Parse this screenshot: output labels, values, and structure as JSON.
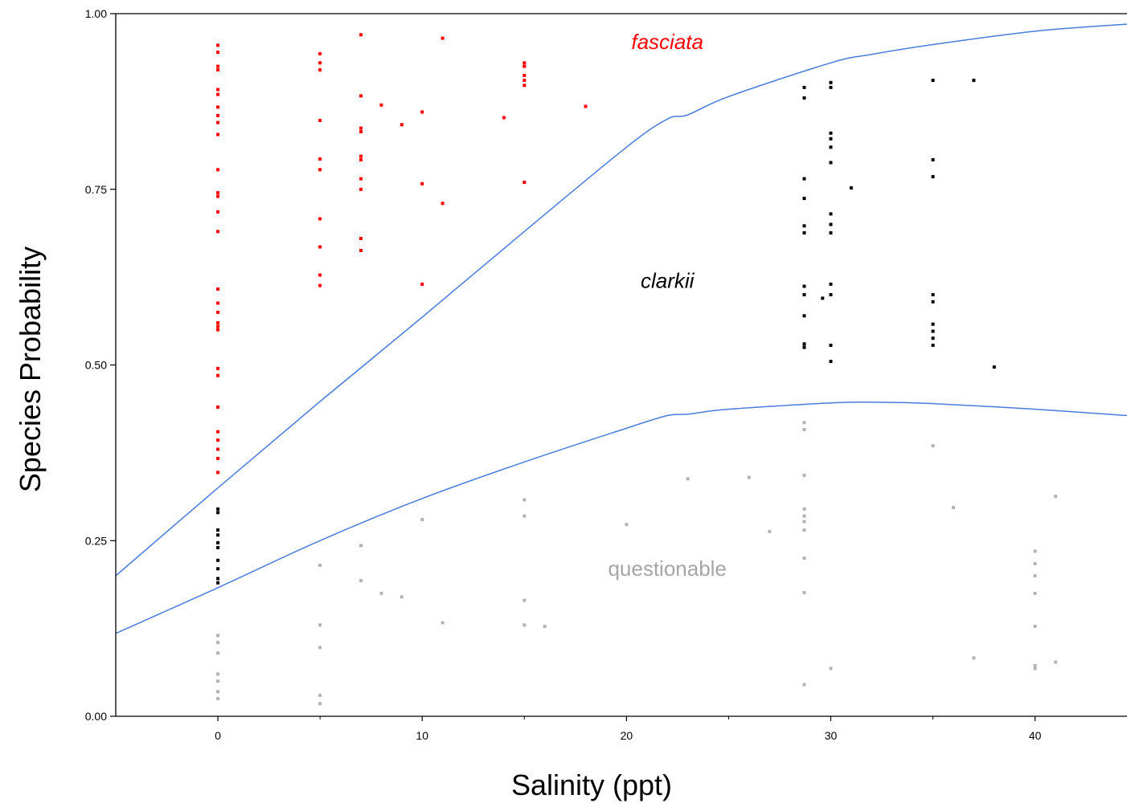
{
  "chart_data": {
    "type": "scatter",
    "title": "",
    "xlabel": "Salinity (ppt)",
    "ylabel": "Species Probability",
    "xlim": [
      -5,
      44.5
    ],
    "ylim": [
      0,
      1
    ],
    "x_ticks": [
      0,
      10,
      20,
      30,
      40
    ],
    "x_minor_ticks": [
      5,
      15,
      25,
      35
    ],
    "x_tick_labels": [
      "0",
      "10",
      "20",
      "30",
      "40"
    ],
    "y_ticks": [
      0,
      0.25,
      0.5,
      0.75,
      1.0
    ],
    "y_tick_labels": [
      "0.00",
      "0.25",
      "0.50",
      "0.75",
      "1.00"
    ],
    "grid": false,
    "legend": "none",
    "annotations": [
      {
        "text": "fasciata",
        "x": 22,
        "y": 0.95,
        "color": "#ff0000",
        "style": "italic"
      },
      {
        "text": "clarkii",
        "x": 22,
        "y": 0.61,
        "color": "#000000",
        "style": "italic"
      },
      {
        "text": "questionable",
        "x": 22,
        "y": 0.2,
        "color": "#a6a6a6",
        "style": "normal"
      }
    ],
    "curves": [
      {
        "color": "#4a7bdc",
        "x": [
          -5,
          0,
          5,
          10,
          15,
          20,
          22,
          23,
          25,
          30,
          32,
          35,
          40,
          44.5
        ],
        "y": [
          0.2,
          0.325,
          0.448,
          0.568,
          0.69,
          0.81,
          0.85,
          0.856,
          0.882,
          0.93,
          0.942,
          0.956,
          0.975,
          0.985
        ]
      },
      {
        "color": "#4a7bdc",
        "x": [
          -5,
          0,
          5,
          10,
          15,
          20,
          22,
          23,
          25,
          30,
          32,
          35,
          40,
          44.5
        ],
        "y": [
          0.118,
          0.183,
          0.25,
          0.31,
          0.362,
          0.41,
          0.428,
          0.43,
          0.437,
          0.446,
          0.447,
          0.445,
          0.437,
          0.428
        ]
      }
    ],
    "series": [
      {
        "color": "#ff0000",
        "points": [
          [
            0,
            0.955
          ],
          [
            0,
            0.945
          ],
          [
            0,
            0.925
          ],
          [
            0,
            0.92
          ],
          [
            0,
            0.892
          ],
          [
            0,
            0.885
          ],
          [
            0,
            0.867
          ],
          [
            0,
            0.855
          ],
          [
            0,
            0.845
          ],
          [
            0,
            0.828
          ],
          [
            0,
            0.778
          ],
          [
            0,
            0.745
          ],
          [
            0,
            0.74
          ],
          [
            0,
            0.718
          ],
          [
            0,
            0.69
          ],
          [
            0,
            0.608
          ],
          [
            0,
            0.588
          ],
          [
            0,
            0.575
          ],
          [
            0,
            0.56
          ],
          [
            0,
            0.555
          ],
          [
            0,
            0.55
          ],
          [
            0,
            0.495
          ],
          [
            0,
            0.485
          ],
          [
            0,
            0.44
          ],
          [
            0,
            0.405
          ],
          [
            0,
            0.393
          ],
          [
            0,
            0.38
          ],
          [
            0,
            0.367
          ],
          [
            0,
            0.347
          ],
          [
            5,
            0.943
          ],
          [
            5,
            0.93
          ],
          [
            5,
            0.92
          ],
          [
            5,
            0.848
          ],
          [
            5,
            0.793
          ],
          [
            5,
            0.778
          ],
          [
            5,
            0.708
          ],
          [
            5,
            0.668
          ],
          [
            5,
            0.628
          ],
          [
            5,
            0.613
          ],
          [
            7,
            0.97
          ],
          [
            7,
            0.883
          ],
          [
            7,
            0.837
          ],
          [
            7,
            0.832
          ],
          [
            7,
            0.797
          ],
          [
            7,
            0.792
          ],
          [
            7,
            0.765
          ],
          [
            7,
            0.75
          ],
          [
            7,
            0.68
          ],
          [
            7,
            0.663
          ],
          [
            8,
            0.87
          ],
          [
            9,
            0.842
          ],
          [
            10,
            0.86
          ],
          [
            10,
            0.758
          ],
          [
            10,
            0.615
          ],
          [
            11,
            0.965
          ],
          [
            11,
            0.73
          ],
          [
            14,
            0.852
          ],
          [
            15,
            0.93
          ],
          [
            15,
            0.925
          ],
          [
            15,
            0.912
          ],
          [
            15,
            0.905
          ],
          [
            15,
            0.898
          ],
          [
            15,
            0.76
          ],
          [
            18,
            0.868
          ]
        ]
      },
      {
        "color": "#000000",
        "points": [
          [
            0,
            0.295
          ],
          [
            0,
            0.29
          ],
          [
            0,
            0.265
          ],
          [
            0,
            0.258
          ],
          [
            0,
            0.247
          ],
          [
            0,
            0.24
          ],
          [
            0,
            0.222
          ],
          [
            0,
            0.21
          ],
          [
            0,
            0.196
          ],
          [
            0,
            0.19
          ],
          [
            28.7,
            0.895
          ],
          [
            28.7,
            0.88
          ],
          [
            28.7,
            0.765
          ],
          [
            28.7,
            0.737
          ],
          [
            28.7,
            0.698
          ],
          [
            28.7,
            0.688
          ],
          [
            28.7,
            0.612
          ],
          [
            28.7,
            0.6
          ],
          [
            28.7,
            0.57
          ],
          [
            28.7,
            0.53
          ],
          [
            28.7,
            0.525
          ],
          [
            29.6,
            0.595
          ],
          [
            30,
            0.902
          ],
          [
            30,
            0.895
          ],
          [
            30,
            0.83
          ],
          [
            30,
            0.822
          ],
          [
            30,
            0.81
          ],
          [
            30,
            0.788
          ],
          [
            30,
            0.715
          ],
          [
            30,
            0.7
          ],
          [
            30,
            0.688
          ],
          [
            30,
            0.615
          ],
          [
            30,
            0.6
          ],
          [
            30,
            0.528
          ],
          [
            30,
            0.505
          ],
          [
            31,
            0.752
          ],
          [
            35,
            0.905
          ],
          [
            35,
            0.792
          ],
          [
            35,
            0.768
          ],
          [
            35,
            0.6
          ],
          [
            35,
            0.59
          ],
          [
            35,
            0.558
          ],
          [
            35,
            0.548
          ],
          [
            35,
            0.538
          ],
          [
            35,
            0.528
          ],
          [
            37,
            0.905
          ],
          [
            38,
            0.497
          ]
        ]
      },
      {
        "color": "#b3b3b3",
        "points": [
          [
            0,
            0.115
          ],
          [
            0,
            0.105
          ],
          [
            0,
            0.09
          ],
          [
            0,
            0.06
          ],
          [
            0,
            0.05
          ],
          [
            0,
            0.035
          ],
          [
            0,
            0.025
          ],
          [
            5,
            0.215
          ],
          [
            5,
            0.13
          ],
          [
            5,
            0.098
          ],
          [
            5,
            0.03
          ],
          [
            5,
            0.018
          ],
          [
            7,
            0.243
          ],
          [
            7,
            0.193
          ],
          [
            8,
            0.175
          ],
          [
            9,
            0.17
          ],
          [
            10,
            0.28
          ],
          [
            11,
            0.133
          ],
          [
            15,
            0.308
          ],
          [
            15,
            0.285
          ],
          [
            15,
            0.165
          ],
          [
            15,
            0.13
          ],
          [
            16,
            0.128
          ],
          [
            20,
            0.273
          ],
          [
            23,
            0.338
          ],
          [
            26,
            0.34
          ],
          [
            27,
            0.263
          ],
          [
            28.7,
            0.418
          ],
          [
            28.7,
            0.408
          ],
          [
            28.7,
            0.343
          ],
          [
            28.7,
            0.295
          ],
          [
            28.7,
            0.285
          ],
          [
            28.7,
            0.277
          ],
          [
            28.7,
            0.265
          ],
          [
            28.7,
            0.225
          ],
          [
            28.7,
            0.176
          ],
          [
            28.7,
            0.045
          ],
          [
            30,
            0.068
          ],
          [
            35,
            0.385
          ],
          [
            36,
            0.297
          ],
          [
            37,
            0.083
          ],
          [
            40,
            0.235
          ],
          [
            40,
            0.217
          ],
          [
            40,
            0.2
          ],
          [
            40,
            0.175
          ],
          [
            40,
            0.128
          ],
          [
            40,
            0.072
          ],
          [
            40,
            0.068
          ],
          [
            41,
            0.313
          ],
          [
            41,
            0.077
          ]
        ]
      }
    ]
  }
}
